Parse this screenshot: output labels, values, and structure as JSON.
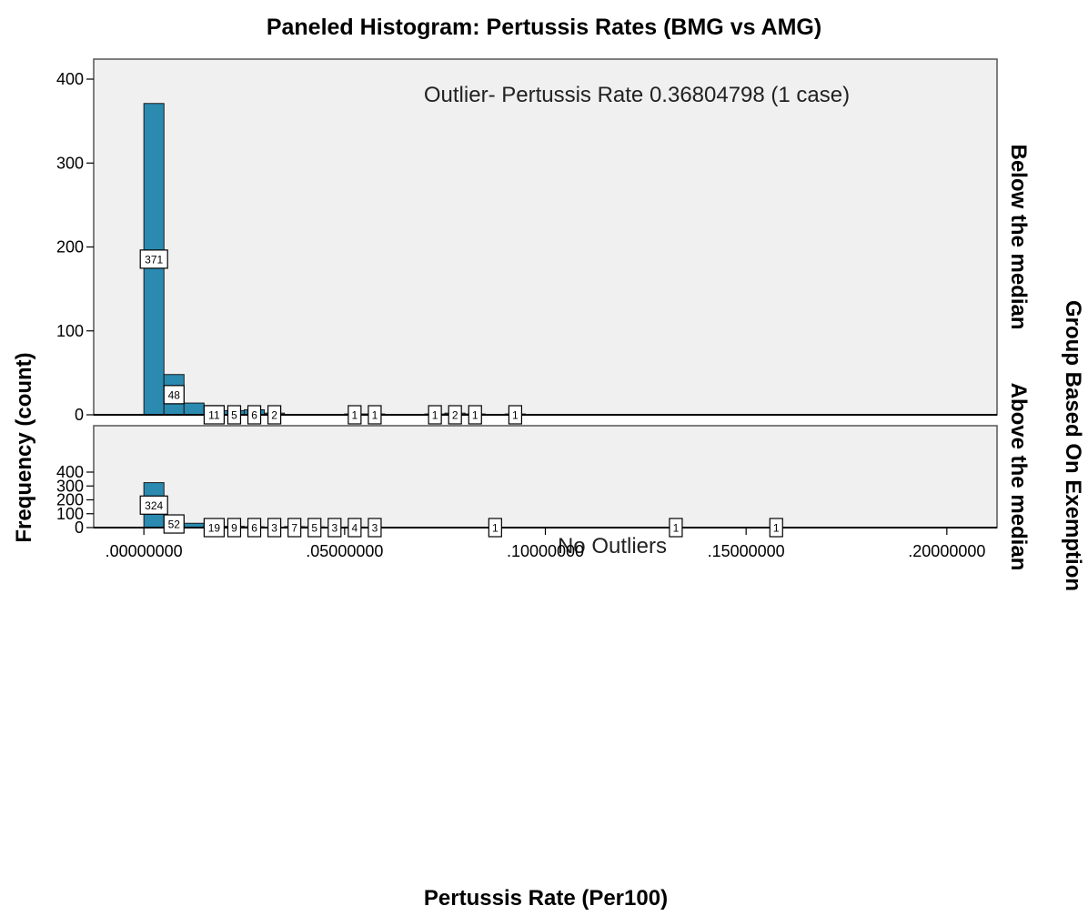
{
  "chart_data": {
    "type": "bar",
    "title": "Paneled Histogram: Pertussis Rates (BMG vs AMG)",
    "xlabel": "Pertussis Rate (Per100)",
    "ylabel": "Frequency (count)",
    "panel_group_label": "Group Based On Exemption",
    "xlim": [
      -0.0125,
      0.2125
    ],
    "ylim": [
      0,
      420
    ],
    "bin_width": 0.005,
    "x_ticks": [
      ".00000000",
      ".05000000",
      ".10000000",
      ".15000000",
      ".20000000"
    ],
    "x_tick_values": [
      0,
      0.05,
      0.1,
      0.15,
      0.2
    ],
    "y_ticks": [
      0,
      100,
      200,
      300,
      400
    ],
    "bar_color": "#2a8ab0",
    "panel_background": "#f0f0f0",
    "panels": [
      {
        "name": "Below the median",
        "annotation": "Outlier- Pertussis Rate 0.36804798 (1 case)",
        "bins": [
          {
            "x": 0.0025,
            "value": 371,
            "label": "371"
          },
          {
            "x": 0.0075,
            "value": 48,
            "label": "48"
          },
          {
            "x": 0.0125,
            "value": 14
          },
          {
            "x": 0.0175,
            "value": 11,
            "label": "11"
          },
          {
            "x": 0.0225,
            "value": 5,
            "label": "5"
          },
          {
            "x": 0.0275,
            "value": 6,
            "label": "6"
          },
          {
            "x": 0.0325,
            "value": 2,
            "label": "2"
          },
          {
            "x": 0.0525,
            "value": 1,
            "label": "1"
          },
          {
            "x": 0.0575,
            "value": 1,
            "label": "1"
          },
          {
            "x": 0.0725,
            "value": 1,
            "label": "1"
          },
          {
            "x": 0.0775,
            "value": 2,
            "label": "2"
          },
          {
            "x": 0.0825,
            "value": 1,
            "label": "1"
          },
          {
            "x": 0.0925,
            "value": 1,
            "label": "1"
          }
        ]
      },
      {
        "name": "Above the median",
        "annotation": "No Outliers",
        "bins": [
          {
            "x": 0.0025,
            "value": 324,
            "label": "324"
          },
          {
            "x": 0.0075,
            "value": 52,
            "label": "52"
          },
          {
            "x": 0.0125,
            "value": 31
          },
          {
            "x": 0.0175,
            "value": 19,
            "label": "19"
          },
          {
            "x": 0.0225,
            "value": 9,
            "label": "9"
          },
          {
            "x": 0.0275,
            "value": 6,
            "label": "6"
          },
          {
            "x": 0.0325,
            "value": 3,
            "label": "3"
          },
          {
            "x": 0.0375,
            "value": 7,
            "label": "7"
          },
          {
            "x": 0.0425,
            "value": 5,
            "label": "5"
          },
          {
            "x": 0.0475,
            "value": 3,
            "label": "3"
          },
          {
            "x": 0.0525,
            "value": 4,
            "label": "4"
          },
          {
            "x": 0.0575,
            "value": 3,
            "label": "3"
          },
          {
            "x": 0.0875,
            "value": 1,
            "label": "1"
          },
          {
            "x": 0.1325,
            "value": 1,
            "label": "1"
          },
          {
            "x": 0.1575,
            "value": 1,
            "label": "1"
          }
        ]
      }
    ]
  }
}
